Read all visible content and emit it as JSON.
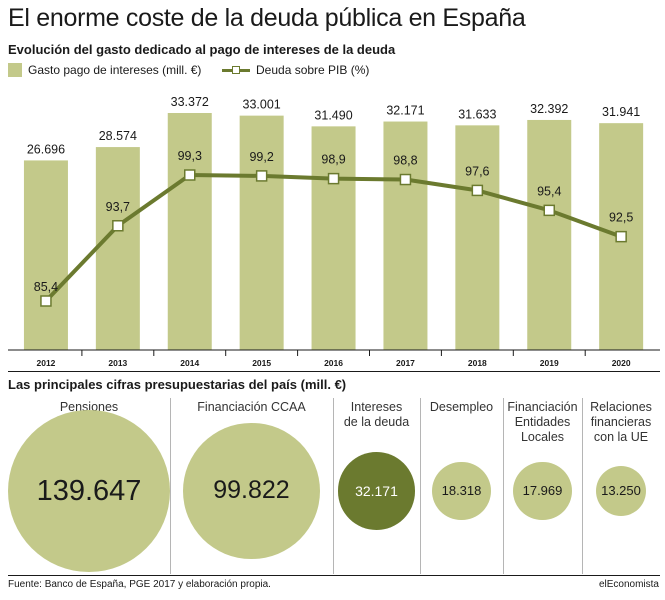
{
  "header": {
    "title": "El enorme coste de la deuda pública en España",
    "subtitle": "Evolución del gasto dedicado al pago de intereses de la deuda"
  },
  "legend": {
    "bars_label": "Gasto pago de intereses (mill. €)",
    "line_label": "Deuda sobre PIB (%)"
  },
  "colors": {
    "bar": "#c3c98a",
    "line": "#6b7a2f",
    "bubble_light": "#c3c98a",
    "bubble_dark": "#6b7a2f"
  },
  "chart_data": [
    {
      "type": "bar",
      "categories": [
        "2012",
        "2013",
        "2014",
        "2015",
        "2016",
        "2017",
        "2018",
        "2019",
        "2020"
      ],
      "series": [
        {
          "name": "Gasto pago de intereses (mill. €)",
          "type": "bar",
          "values": [
            26696,
            28574,
            33372,
            33001,
            31490,
            32171,
            31633,
            32392,
            31941
          ],
          "labels": [
            "26.696",
            "28.574",
            "33.372",
            "33.001",
            "31.490",
            "32.171",
            "31.633",
            "32.392",
            "31.941"
          ]
        },
        {
          "name": "Deuda sobre PIB (%)",
          "type": "line",
          "values": [
            85.4,
            93.7,
            99.3,
            99.2,
            98.9,
            98.8,
            97.6,
            95.4,
            92.5
          ],
          "labels": [
            "85,4",
            "93,7",
            "99,3",
            "99,2",
            "98,9",
            "98,8",
            "97,6",
            "95,4",
            "92,5"
          ]
        }
      ],
      "legend": "top-left",
      "grid": false
    },
    {
      "type": "bubble",
      "title": "Las principales cifras presupuestarias del país (mill. €)",
      "categories": [
        "Pensiones",
        "Financiación CCAA",
        "Intereses de la deuda",
        "Desempleo",
        "Financiación Entidades Locales",
        "Relaciones financieras con la UE"
      ],
      "values": [
        139647,
        99822,
        32171,
        18318,
        17969,
        13250
      ],
      "labels": [
        "139.647",
        "99.822",
        "32.171",
        "18.318",
        "17.969",
        "13.250"
      ],
      "highlight": "Intereses de la deuda"
    }
  ],
  "bubble_labels": [
    [
      "Pensiones"
    ],
    [
      "Financiación CCAA"
    ],
    [
      "Intereses",
      "de la deuda"
    ],
    [
      "Desempleo"
    ],
    [
      "Financiación",
      "Entidades",
      "Locales"
    ],
    [
      "Relaciones",
      "financieras",
      "con la UE"
    ]
  ],
  "footer": {
    "source": "Fuente: Banco de España, PGE 2017 y elaboración propia.",
    "brand": "elEconomista"
  }
}
